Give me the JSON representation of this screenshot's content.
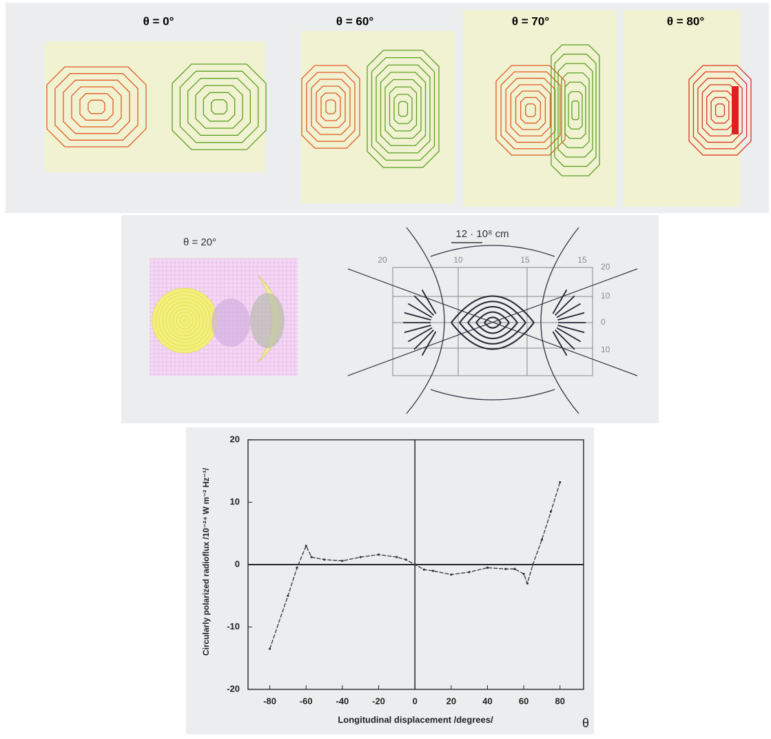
{
  "panels": {
    "top_labels": [
      "θ = 0°",
      "θ = 60°",
      "θ = 70°",
      "θ = 80°"
    ],
    "middle_label": "θ = 20°",
    "scale_label": "12 · 10⁸ cm",
    "diagram_top_labels": [
      "20",
      "10",
      "15",
      "15"
    ],
    "diagram_right_labels": [
      "20",
      "10",
      "0",
      "10"
    ]
  },
  "chart_data": {
    "type": "line",
    "x_label": "Longitudinal displacement /degrees/",
    "x_symbol": "θ",
    "y_label": "Circularly polarized radioflux /10⁻²⁴ W m⁻² Hz⁻¹/",
    "x": [
      -80,
      -70,
      -65,
      -60,
      -57,
      -50,
      -40,
      -30,
      -20,
      -10,
      -5,
      0,
      5,
      10,
      20,
      30,
      40,
      50,
      55,
      60,
      62,
      65,
      70,
      75,
      80
    ],
    "values": [
      -13.5,
      -5,
      -0.5,
      3,
      1.2,
      0.8,
      0.6,
      1.2,
      1.6,
      1.2,
      0.8,
      0,
      -0.8,
      -1,
      -1.6,
      -1.2,
      -0.5,
      -0.7,
      -0.7,
      -1.5,
      -3,
      0,
      4,
      8.5,
      13.2
    ],
    "color": "#333333",
    "xlim": [
      -92,
      93
    ],
    "ylim": [
      -20,
      20
    ],
    "xticks": [
      -80,
      -60,
      -40,
      -20,
      0,
      20,
      40,
      60,
      80
    ],
    "yticks": [
      -20,
      -10,
      0,
      10,
      20
    ]
  }
}
